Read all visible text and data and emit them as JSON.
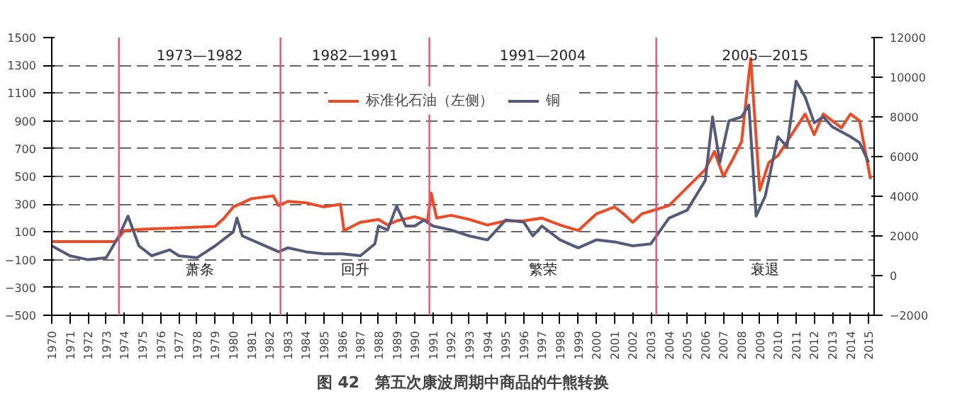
{
  "chart_data": {
    "type": "line",
    "title": "图 42　第五次康波周期中商品的牛熊转换",
    "xlim": [
      1970,
      2015.3
    ],
    "xticks": [
      1970,
      1971,
      1972,
      1973,
      1974,
      1975,
      1976,
      1977,
      1978,
      1979,
      1980,
      1981,
      1982,
      1983,
      1984,
      1985,
      1986,
      1987,
      1988,
      1989,
      1990,
      1991,
      1992,
      1993,
      1994,
      1995,
      1996,
      1997,
      1998,
      1999,
      2000,
      2001,
      2002,
      2003,
      2004,
      2005,
      2006,
      2007,
      2008,
      2009,
      2010,
      2011,
      2012,
      2013,
      2014,
      2015
    ],
    "ylim": [
      -500,
      1500
    ],
    "yticks": [
      -500,
      -300,
      -100,
      100,
      300,
      500,
      700,
      900,
      1100,
      1300,
      1500
    ],
    "y2lim": [
      -2000,
      12000
    ],
    "y2ticks": [
      -2000,
      0,
      2000,
      4000,
      6000,
      8000,
      10000,
      12000
    ],
    "grid": "y",
    "legend": "top",
    "series": [
      {
        "name": "标准化石油（左侧）",
        "color": "#f04a24",
        "x": [
          1970,
          1973.5,
          1974,
          1975,
          1979,
          1979.5,
          1980,
          1981,
          1982.2,
          1982.5,
          1983,
          1984,
          1985,
          1985.9,
          1986.1,
          1987,
          1988,
          1988.5,
          1989,
          1990,
          1990.7,
          1990.9,
          1991.2,
          1992,
          1993,
          1994,
          1995,
          1996,
          1997,
          1998,
          1999,
          1999.5,
          2000,
          2001,
          2001.5,
          2002,
          2002.5,
          2003,
          2004,
          2005,
          2006,
          2006.5,
          2007,
          2007.5,
          2008,
          2008.5,
          2009,
          2009.5,
          2010,
          2011,
          2011.5,
          2012,
          2012.5,
          2013,
          2013.5,
          2014,
          2014.5,
          2015,
          2015.1
        ],
        "values": [
          30,
          30,
          110,
          120,
          140,
          200,
          280,
          340,
          360,
          290,
          320,
          310,
          280,
          300,
          110,
          170,
          190,
          150,
          180,
          210,
          180,
          380,
          200,
          220,
          190,
          150,
          180,
          180,
          200,
          150,
          110,
          170,
          230,
          280,
          230,
          170,
          230,
          250,
          290,
          420,
          550,
          680,
          500,
          620,
          750,
          1350,
          400,
          600,
          650,
          850,
          950,
          800,
          950,
          900,
          850,
          950,
          900,
          550,
          480
        ]
      },
      {
        "name": "铜",
        "color": "#545a7a",
        "axis": "y2",
        "x": [
          1970,
          1971,
          1972,
          1973,
          1973.7,
          1974.2,
          1974.8,
          1975.5,
          1976.5,
          1977,
          1978,
          1979,
          1980,
          1980.2,
          1980.5,
          1981,
          1982.5,
          1983,
          1984,
          1985,
          1986,
          1987,
          1987.8,
          1988,
          1988.5,
          1989,
          1989.5,
          1990,
          1990.5,
          1991,
          1992,
          1993,
          1994,
          1995,
          1996,
          1996.5,
          1997,
          1998,
          1999,
          2000,
          2001,
          2002,
          2003,
          2004,
          2005,
          2006,
          2006.4,
          2006.8,
          2007.3,
          2008,
          2008.4,
          2008.8,
          2009.3,
          2010,
          2010.5,
          2011,
          2011.5,
          2012,
          2012.5,
          2013,
          2014,
          2014.5,
          2015
        ],
        "values": [
          1500,
          1000,
          800,
          900,
          2000,
          3000,
          1500,
          1000,
          1300,
          1000,
          900,
          1500,
          2200,
          2900,
          2000,
          1800,
          1200,
          1400,
          1200,
          1100,
          1100,
          1000,
          1600,
          2500,
          2300,
          3500,
          2500,
          2500,
          2800,
          2500,
          2300,
          2000,
          1800,
          2800,
          2700,
          2000,
          2500,
          1800,
          1400,
          1800,
          1700,
          1500,
          1600,
          2900,
          3300,
          4800,
          8000,
          5700,
          7800,
          8000,
          8600,
          3000,
          4000,
          7000,
          6500,
          9800,
          9000,
          7700,
          8000,
          7500,
          7000,
          6700,
          5700
        ]
      }
    ],
    "ref_lines": [
      {
        "axis": "x",
        "value": 1973.7,
        "color": "#f0506e"
      },
      {
        "axis": "x",
        "value": 1982.6,
        "color": "#f0506e"
      },
      {
        "axis": "x",
        "value": 1990.8,
        "color": "#f0506e"
      },
      {
        "axis": "x",
        "value": 2003.3,
        "color": "#f0506e"
      }
    ],
    "annotations": [
      "1973—1982",
      "萧条",
      "1982—1991",
      "回升",
      "1991—2004",
      "繁荣",
      "2005—2015",
      "衰退"
    ]
  }
}
